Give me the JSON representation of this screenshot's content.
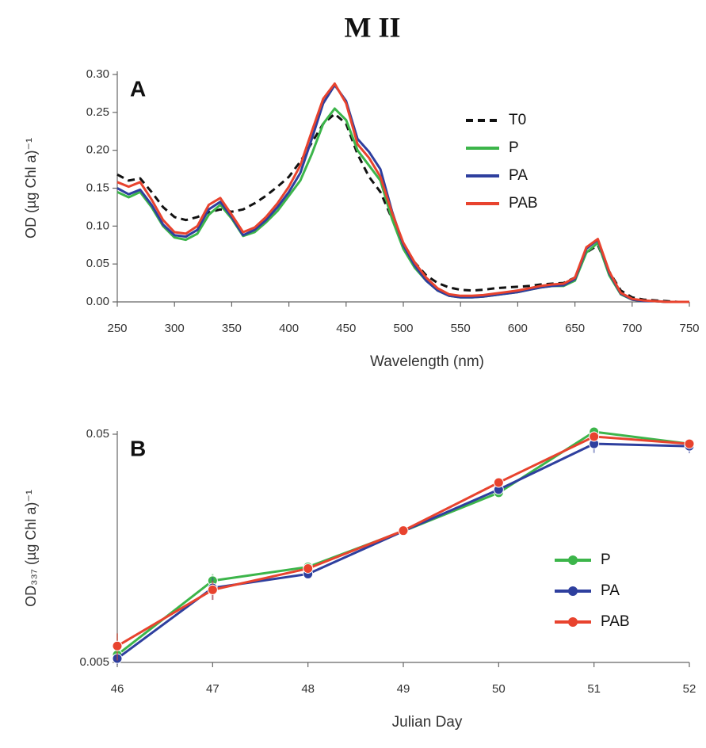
{
  "title": "M II",
  "chart_data": [
    {
      "type": "line",
      "panel_label": "A",
      "xlabel": "Wavelength (nm)",
      "ylabel": "OD (µg Chl a)⁻¹",
      "x": [
        250,
        260,
        270,
        280,
        290,
        300,
        310,
        320,
        330,
        340,
        350,
        360,
        370,
        380,
        390,
        400,
        410,
        420,
        430,
        440,
        450,
        460,
        470,
        480,
        490,
        500,
        510,
        520,
        530,
        540,
        550,
        560,
        570,
        580,
        590,
        600,
        610,
        620,
        630,
        640,
        650,
        660,
        670,
        680,
        690,
        700,
        710,
        720,
        730,
        740,
        750
      ],
      "xlim": [
        250,
        750
      ],
      "xticks": [
        250,
        300,
        350,
        400,
        450,
        500,
        550,
        600,
        650,
        700,
        750
      ],
      "ylim": [
        0,
        0.3
      ],
      "yticks": [
        {
          "value": 0,
          "label": "0.00"
        },
        0.05,
        {
          "value": 0.1,
          "label": "0.10"
        },
        0.15,
        {
          "value": 0.2,
          "label": "0.20"
        },
        0.25,
        {
          "value": 0.3,
          "label": "0.30"
        }
      ],
      "legend": "upper right",
      "series": [
        {
          "name": "T0",
          "color": "#111111",
          "line_style": "dashed",
          "values": [
            0.168,
            0.16,
            0.163,
            0.145,
            0.125,
            0.112,
            0.108,
            0.112,
            0.118,
            0.122,
            0.119,
            0.122,
            0.13,
            0.14,
            0.152,
            0.165,
            0.185,
            0.21,
            0.235,
            0.248,
            0.235,
            0.195,
            0.165,
            0.145,
            0.11,
            0.075,
            0.052,
            0.035,
            0.025,
            0.019,
            0.016,
            0.015,
            0.016,
            0.018,
            0.019,
            0.02,
            0.021,
            0.023,
            0.024,
            0.025,
            0.032,
            0.065,
            0.075,
            0.04,
            0.015,
            0.006,
            0.003,
            0.002,
            0.001,
            0,
            0
          ]
        },
        {
          "name": "P",
          "color": "#3cb54a",
          "line_style": "solid",
          "values": [
            0.145,
            0.138,
            0.145,
            0.125,
            0.1,
            0.085,
            0.082,
            0.09,
            0.115,
            0.128,
            0.11,
            0.087,
            0.092,
            0.105,
            0.12,
            0.14,
            0.16,
            0.195,
            0.235,
            0.255,
            0.24,
            0.2,
            0.18,
            0.16,
            0.11,
            0.07,
            0.045,
            0.028,
            0.015,
            0.008,
            0.006,
            0.006,
            0.007,
            0.009,
            0.011,
            0.013,
            0.016,
            0.019,
            0.021,
            0.021,
            0.028,
            0.065,
            0.078,
            0.035,
            0.01,
            0.003,
            0.001,
            0.001,
            0,
            0,
            0
          ]
        },
        {
          "name": "PA",
          "color": "#2e3f9e",
          "line_style": "solid",
          "values": [
            0.15,
            0.142,
            0.148,
            0.128,
            0.102,
            0.088,
            0.086,
            0.095,
            0.122,
            0.132,
            0.112,
            0.088,
            0.095,
            0.108,
            0.125,
            0.145,
            0.17,
            0.215,
            0.262,
            0.286,
            0.265,
            0.215,
            0.198,
            0.175,
            0.12,
            0.075,
            0.048,
            0.028,
            0.015,
            0.008,
            0.006,
            0.006,
            0.007,
            0.009,
            0.011,
            0.013,
            0.016,
            0.019,
            0.021,
            0.022,
            0.03,
            0.07,
            0.082,
            0.038,
            0.011,
            0.003,
            0.001,
            0.001,
            0,
            0,
            0
          ]
        },
        {
          "name": "PAB",
          "color": "#e8432e",
          "line_style": "solid",
          "values": [
            0.158,
            0.152,
            0.158,
            0.135,
            0.108,
            0.092,
            0.09,
            0.1,
            0.128,
            0.137,
            0.115,
            0.092,
            0.098,
            0.112,
            0.13,
            0.152,
            0.18,
            0.225,
            0.268,
            0.288,
            0.262,
            0.208,
            0.19,
            0.165,
            0.118,
            0.078,
            0.052,
            0.032,
            0.018,
            0.01,
            0.008,
            0.008,
            0.009,
            0.011,
            0.013,
            0.015,
            0.018,
            0.021,
            0.023,
            0.024,
            0.032,
            0.072,
            0.083,
            0.04,
            0.012,
            0.004,
            0.002,
            0.001,
            0,
            0,
            0
          ]
        }
      ]
    },
    {
      "type": "line",
      "panel_label": "B",
      "xlabel": "Julian Day",
      "ylabel": "OD₃₃₇ (µg Chl a)⁻¹",
      "x": [
        46,
        47,
        48,
        49,
        50,
        51,
        52
      ],
      "xlim": [
        46,
        52
      ],
      "xticks": [
        46,
        47,
        48,
        49,
        50,
        51,
        52
      ],
      "yscale": "log",
      "ylim": [
        0.005,
        0.05
      ],
      "yticks": [
        0.005,
        0.05
      ],
      "legend": "center right",
      "markers": true,
      "series": [
        {
          "name": "P",
          "color": "#3cb54a",
          "line_style": "solid",
          "values": [
            0.0054,
            0.0114,
            0.0131,
            0.0188,
            0.0277,
            0.0512,
            0.0454
          ],
          "errors": [
            0.0003,
            0.0008,
            0.0005,
            0.0003,
            0.0008,
            0.0015,
            0.0015
          ]
        },
        {
          "name": "PA",
          "color": "#2e3f9e",
          "line_style": "solid",
          "values": [
            0.0052,
            0.0106,
            0.0122,
            0.0188,
            0.0286,
            0.0454,
            0.0443
          ],
          "errors": [
            0.0003,
            0.0012,
            0.0005,
            0.0003,
            0.0008,
            0.004,
            0.003
          ]
        },
        {
          "name": "PAB",
          "color": "#e8432e",
          "line_style": "solid",
          "values": [
            0.0059,
            0.0104,
            0.0129,
            0.0189,
            0.0307,
            0.0488,
            0.0454
          ],
          "errors": [
            0.0008,
            0.001,
            0.0005,
            0.0003,
            0.0008,
            0.0015,
            0.0015
          ]
        }
      ]
    }
  ]
}
